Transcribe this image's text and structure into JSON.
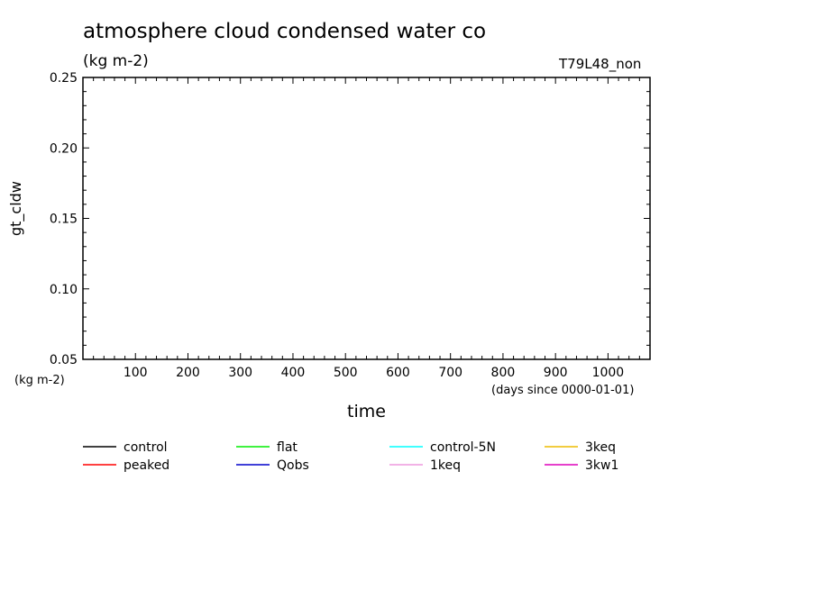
{
  "header": {
    "title": "atmosphere cloud condensed water co",
    "subtitle": "(kg m-2)",
    "run_label": "T79L48_non"
  },
  "chart_data": {
    "type": "line",
    "title": "atmosphere cloud condensed water co",
    "subtitle": "(kg m-2)",
    "xlabel": "time",
    "x_units": "(days since 0000-01-01)",
    "ylabel": "gt_cldw",
    "y_units": "(kg m-2)",
    "xlim": [
      0,
      1080
    ],
    "ylim": [
      0.05,
      0.25
    ],
    "x_ticks": [
      100,
      200,
      300,
      400,
      500,
      600,
      700,
      800,
      900,
      1000
    ],
    "x_tick_labels": [
      "100",
      "200",
      "300",
      "400",
      "500",
      "600",
      "700",
      "800",
      "900",
      "1000"
    ],
    "y_ticks": [
      0.05,
      0.1,
      0.15,
      0.2,
      0.25
    ],
    "y_tick_labels": [
      "0.05",
      "0.10",
      "0.15",
      "0.20",
      "0.25"
    ],
    "grid": false,
    "legend_position": "bottom",
    "series": [
      {
        "name": "control",
        "color": "#000000",
        "x": [],
        "y": []
      },
      {
        "name": "peaked",
        "color": "#ff0000",
        "x": [],
        "y": []
      },
      {
        "name": "flat",
        "color": "#00ee00",
        "x": [],
        "y": []
      },
      {
        "name": "Qobs",
        "color": "#0000cc",
        "x": [],
        "y": []
      },
      {
        "name": "control-5N",
        "color": "#00ffff",
        "x": [],
        "y": []
      },
      {
        "name": "1keq",
        "color": "#ee99dd",
        "x": [],
        "y": []
      },
      {
        "name": "3keq",
        "color": "#eebb00",
        "x": [],
        "y": []
      },
      {
        "name": "3kw1",
        "color": "#dd00bb",
        "x": [],
        "y": []
      }
    ]
  }
}
